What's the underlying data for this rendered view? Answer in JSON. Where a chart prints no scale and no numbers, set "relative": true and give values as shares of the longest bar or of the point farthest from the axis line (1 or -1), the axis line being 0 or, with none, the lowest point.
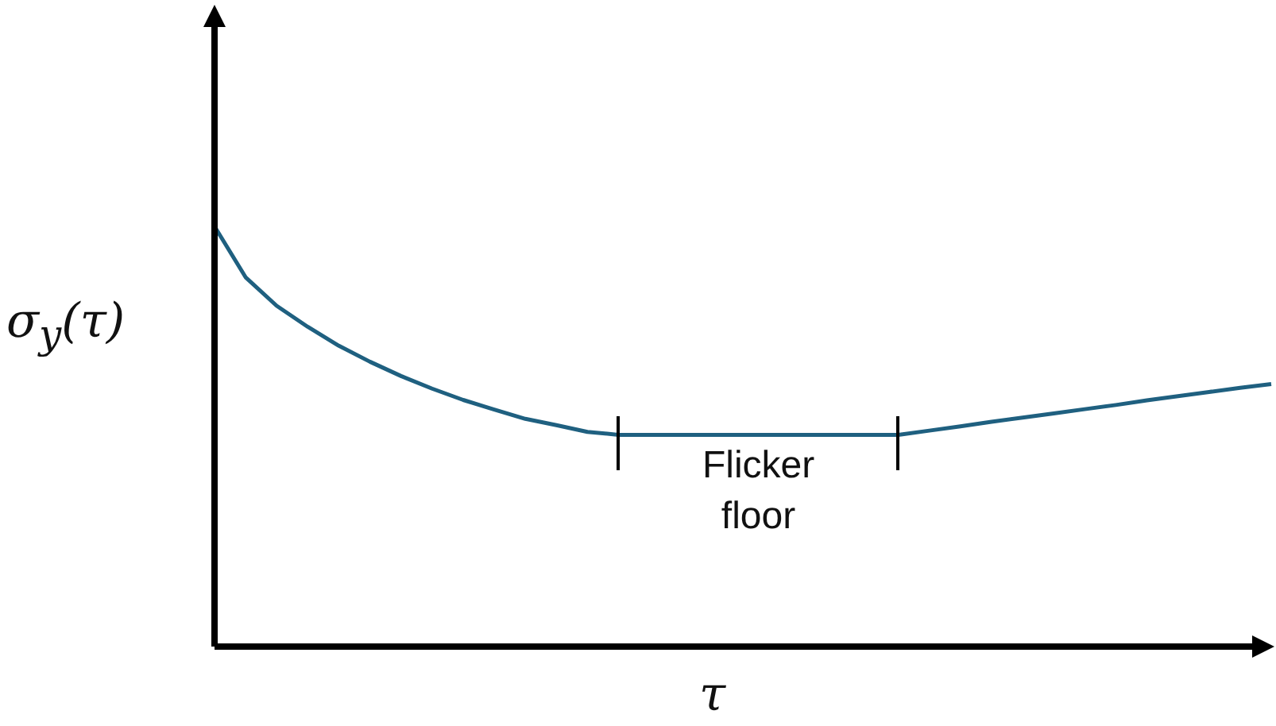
{
  "chart_data": {
    "type": "line",
    "relative": true,
    "xlabel": "τ",
    "ylabel": "σ$_{y}$(τ)",
    "categories": [
      null,
      null,
      null,
      null,
      null,
      null,
      null,
      null,
      null,
      null,
      null,
      null,
      null,
      null,
      null,
      null,
      null,
      null,
      null,
      null,
      null,
      null,
      null,
      null,
      null,
      null,
      null,
      null,
      null,
      null,
      null,
      null,
      null,
      null,
      null
    ],
    "series": [
      {
        "color": "#1f6080",
        "values": [
          1,
          0.879,
          0.811,
          0.761,
          0.716,
          0.678,
          0.644,
          0.614,
          0.587,
          0.564,
          0.542,
          0.527,
          0.511,
          0.504,
          0.504,
          0.504,
          0.504,
          0.504,
          0.504,
          0.504,
          0.504,
          0.504,
          0.504,
          0.514,
          0.524,
          0.535,
          0.545,
          0.555,
          0.565,
          0.575,
          0.586,
          0.596,
          0.606,
          0.616,
          0.625
        ]
      }
    ],
    "annotations": [
      "Flicker floor"
    ]
  }
}
